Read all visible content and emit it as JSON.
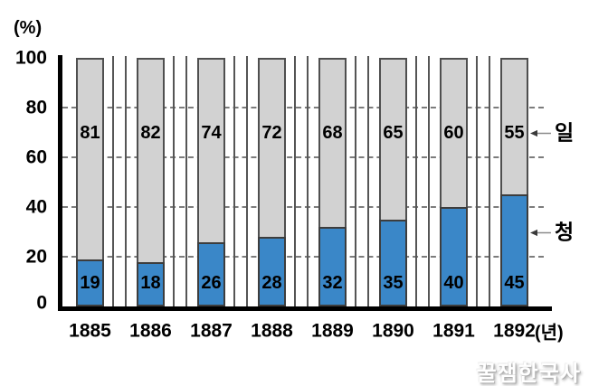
{
  "watermark": "꿀잼한국사",
  "colors": {
    "qing_blue": "#3a87c8",
    "japan_gray": "#d2d2d2",
    "bar_border": "#4f4f4f",
    "gridline": "#7c7c7c",
    "axis": "#000000",
    "arrow": "#8a8a8a"
  },
  "chart_data": {
    "type": "bar",
    "stacked": true,
    "title": "",
    "unit_y": "(%)",
    "unit_x": "(년)",
    "categories": [
      "1885",
      "1886",
      "1887",
      "1888",
      "1889",
      "1890",
      "1891",
      "1892"
    ],
    "series": [
      {
        "name": "청",
        "key": "qing",
        "color": "#3a87c8",
        "values": [
          19,
          18,
          26,
          28,
          32,
          35,
          40,
          45
        ]
      },
      {
        "name": "일",
        "key": "japan",
        "color": "#d2d2d2",
        "values": [
          81,
          82,
          74,
          72,
          68,
          65,
          60,
          55
        ]
      }
    ],
    "ylim": [
      0,
      100
    ],
    "yticks": [
      0,
      20,
      40,
      60,
      80,
      100
    ],
    "grid": "horizontal-dashed",
    "legend_position": "right-arrow-annotations",
    "annotations": [
      {
        "text": "일",
        "series": "japan"
      },
      {
        "text": "청",
        "series": "qing"
      }
    ]
  }
}
